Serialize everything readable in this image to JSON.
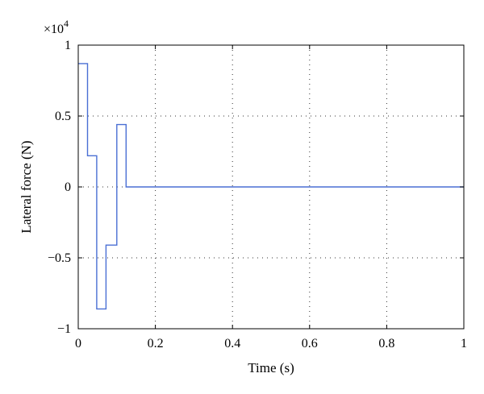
{
  "chart_data": {
    "type": "line",
    "step": true,
    "xlabel": "Time (s)",
    "ylabel": "Lateral force (N)",
    "y_exponent_label": {
      "base": "×10",
      "exp": "4"
    },
    "xlim": [
      0,
      1
    ],
    "ylim": [
      -1,
      1
    ],
    "x_ticks": [
      0,
      0.2,
      0.4,
      0.6,
      0.8,
      1
    ],
    "x_tick_labels": [
      "0",
      "0.2",
      "0.4",
      "0.6",
      "0.8",
      "1"
    ],
    "y_ticks": [
      1,
      0.5,
      0,
      -0.5,
      -1
    ],
    "y_tick_labels": [
      "1",
      "0.5",
      "0",
      "−0.5",
      "−1"
    ],
    "grid": true,
    "line_color": "#4a6fd4",
    "series": [
      {
        "x": [
          0,
          0.024,
          0.024,
          0.048,
          0.048,
          0.072,
          0.072,
          0.1,
          0.1,
          0.124,
          0.124,
          1.0
        ],
        "y": [
          0.87,
          0.87,
          0.22,
          0.22,
          -0.86,
          -0.86,
          -0.41,
          -0.41,
          0.44,
          0.44,
          0.0,
          0.0
        ]
      }
    ]
  }
}
